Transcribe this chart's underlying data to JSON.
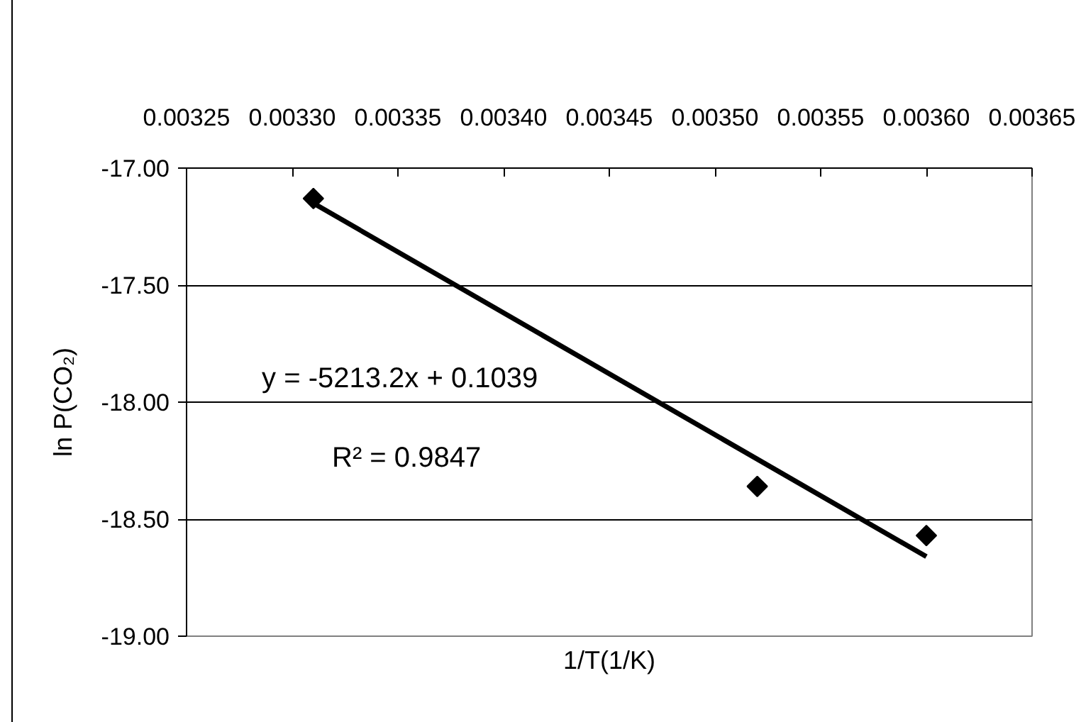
{
  "chart_data": {
    "type": "scatter",
    "xlabel": "1/T(1/K)",
    "ylabel": "ln P(CO₂)",
    "xlim": [
      0.00325,
      0.00365
    ],
    "xticks": [
      0.00325,
      {
        "value": 0.0033,
        "label": "0.00330"
      },
      0.00335,
      {
        "value": 0.0034,
        "label": "0.00340"
      },
      0.00345,
      {
        "value": 0.0035,
        "label": "0.00350"
      },
      0.00355,
      {
        "value": 0.0036,
        "label": "0.00360"
      },
      0.00365
    ],
    "ylim": [
      -19,
      -17
    ],
    "yticks": [
      {
        "value": -19,
        "label": "-19.00"
      },
      {
        "value": -18.5,
        "label": "-18.50"
      },
      {
        "value": -18,
        "label": "-18.00"
      },
      {
        "value": -17.5,
        "label": "-17.50"
      },
      {
        "value": -17,
        "label": "-17.00"
      }
    ],
    "grid": "y",
    "series": [
      {
        "color": "#000000",
        "marker": "diamond",
        "x": [
          0.00331,
          0.00352,
          0.0036
        ],
        "values": [
          -17.13,
          -18.36,
          -18.57
        ]
      },
      {
        "type": "line",
        "color": "#000000",
        "line_style": "solid",
        "x": [
          0.00331,
          0.0036
        ],
        "values": [
          -17.15,
          -18.66
        ]
      }
    ],
    "annotations": [
      "y = -5213.2x + 0.1039",
      "R² = 0.9847"
    ]
  }
}
